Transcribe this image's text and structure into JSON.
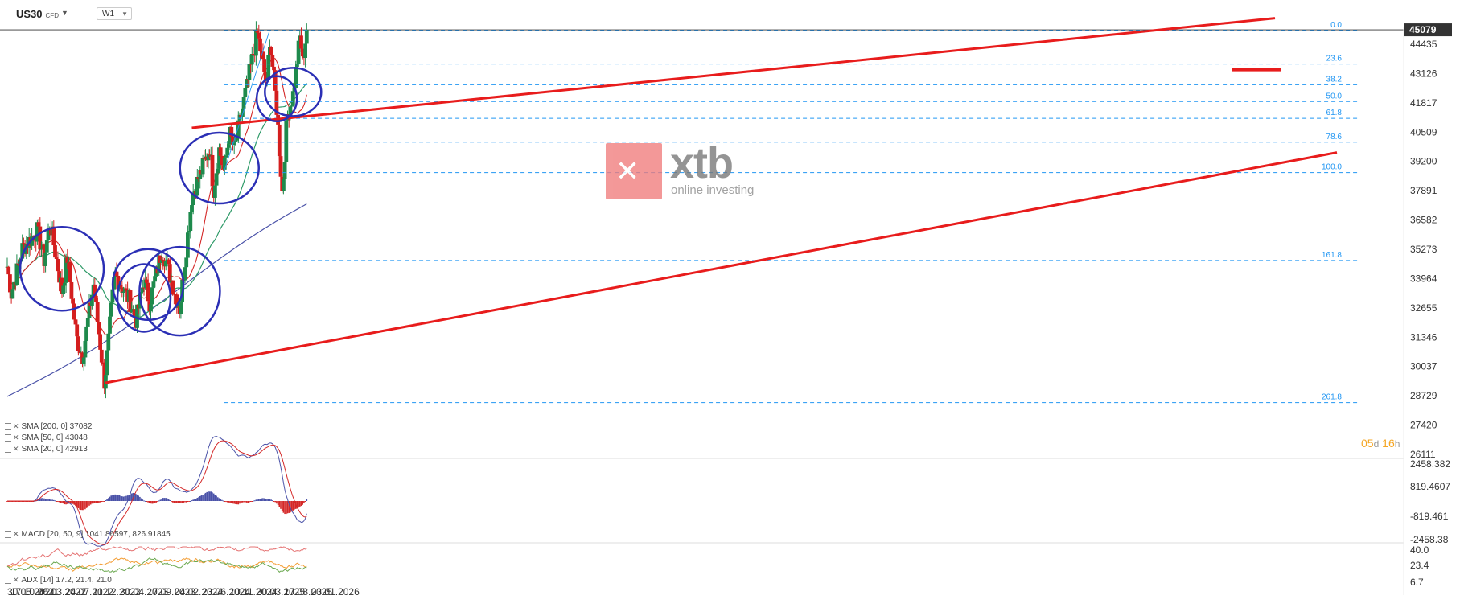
{
  "header": {
    "symbol": "US30",
    "symbol_type": "CFD",
    "timeframe": "W1",
    "current_price": "45079"
  },
  "watermark": {
    "brand": "xtb",
    "tagline": "online investing"
  },
  "countdown": {
    "days": "05",
    "days_unit": "d",
    "hours": "16",
    "hours_unit": "h"
  },
  "indicators": {
    "sma200": "SMA [200, 0] 37082",
    "sma50": "SMA [50, 0] 43048",
    "sma20": "SMA [20, 0] 42913",
    "macd": "MACD [20, 50, 9] 1041.86597, 826.91845",
    "adx": "ADX [14] 17.2, 21.4, 21.0"
  },
  "colors": {
    "bull": "#1e8a4c",
    "bear": "#d41e1e",
    "sma200": "#4a52a8",
    "sma50": "#2e9a68",
    "sma20": "#d42828",
    "trend": "#e81c1c",
    "circle": "#2b2fb5",
    "fib": "#2196f3",
    "macd_line": "#4a52a8",
    "signal_line": "#d42828",
    "adx_orange": "#f39c32",
    "adx_green": "#6aa84f",
    "adx_red": "#e57373"
  },
  "chart_data": {
    "type": "candlestick",
    "instrument": "US30",
    "interval": "W1",
    "price_axis": [
      "44435",
      "43126",
      "41817",
      "40509",
      "39200",
      "37891",
      "36582",
      "35273",
      "33964",
      "32655",
      "31346",
      "30037",
      "28729",
      "27420",
      "26111"
    ],
    "time_axis": [
      "30.05.2021",
      "17.10.2021",
      "06.03.2022",
      "24.07.2022",
      "11.12.2022",
      "30.04.2023",
      "17.09.2023",
      "04.02.2024",
      "23.06.2024",
      "10.11.2024",
      "30.03.2025",
      "17.08.2025",
      "03.01.2026"
    ],
    "fibonacci": {
      "high": 45050,
      "low": 38700,
      "levels": [
        {
          "label": "0.0",
          "ratio": 0
        },
        {
          "label": "23.6",
          "ratio": 0.236
        },
        {
          "label": "38.2",
          "ratio": 0.382
        },
        {
          "label": "50.0",
          "ratio": 0.5
        },
        {
          "label": "61.8",
          "ratio": 0.618
        },
        {
          "label": "78.6",
          "ratio": 0.786
        },
        {
          "label": "100.0",
          "ratio": 1
        },
        {
          "label": "161.8",
          "ratio": 1.618
        },
        {
          "label": "261.8",
          "ratio": 2.618
        }
      ]
    },
    "series": [
      {
        "name": "SMA [200, 0]",
        "last": 37082
      },
      {
        "name": "SMA [50, 0]",
        "last": 43048
      },
      {
        "name": "SMA [20, 0]",
        "last": 42913
      }
    ],
    "anchors": [
      {
        "date": "30.05.2021",
        "close": 34500
      },
      {
        "date": "20.06.2021",
        "close": 33300
      },
      {
        "date": "15.08.2021",
        "close": 35300
      },
      {
        "date": "01.11.2021",
        "close": 36100
      },
      {
        "date": "05.12.2021",
        "close": 34800
      },
      {
        "date": "03.01.2022",
        "close": 36500
      },
      {
        "date": "06.03.2022",
        "close": 33400
      },
      {
        "date": "03.04.2022",
        "close": 34900
      },
      {
        "date": "20.05.2022",
        "close": 31300
      },
      {
        "date": "20.06.2022",
        "close": 30500
      },
      {
        "date": "14.08.2022",
        "close": 33700
      },
      {
        "date": "10.10.2022",
        "close": 29300
      },
      {
        "date": "01.12.2022",
        "close": 34200
      },
      {
        "date": "20.02.2023",
        "close": 32900
      },
      {
        "date": "20.03.2023",
        "close": 32100
      },
      {
        "date": "30.04.2023",
        "close": 33900
      },
      {
        "date": "29.05.2023",
        "close": 32900
      },
      {
        "date": "01.08.2023",
        "close": 35300
      },
      {
        "date": "30.10.2023",
        "close": 32600
      },
      {
        "date": "31.12.2023",
        "close": 37600
      },
      {
        "date": "31.03.2024",
        "close": 39800
      },
      {
        "date": "20.04.2024",
        "close": 37900
      },
      {
        "date": "20.05.2024",
        "close": 39800
      },
      {
        "date": "11.06.2024",
        "close": 38700
      },
      {
        "date": "10.07.2024",
        "close": 40500
      },
      {
        "date": "05.08.2024",
        "close": 39700
      },
      {
        "date": "01.10.2024",
        "close": 42300
      },
      {
        "date": "01.12.2024",
        "close": 44900
      },
      {
        "date": "19.01.2025",
        "close": 42500
      },
      {
        "date": "01.02.2025",
        "close": 44800
      },
      {
        "date": "10.03.2025",
        "close": 41500
      },
      {
        "date": "07.04.2025",
        "close": 37700
      },
      {
        "date": "01.05.2025",
        "close": 41200
      },
      {
        "date": "01.06.2025",
        "close": 42200
      },
      {
        "date": "07.07.2025",
        "close": 44800
      },
      {
        "date": "21.07.2025",
        "close": 43700
      },
      {
        "date": "10.08.2025",
        "close": 45079
      }
    ],
    "macd_axis": [
      "2458.382",
      "819.4607",
      "-819.461",
      "-2458.38"
    ],
    "adx_axis": [
      "40.0",
      "23.4",
      "6.7"
    ]
  }
}
